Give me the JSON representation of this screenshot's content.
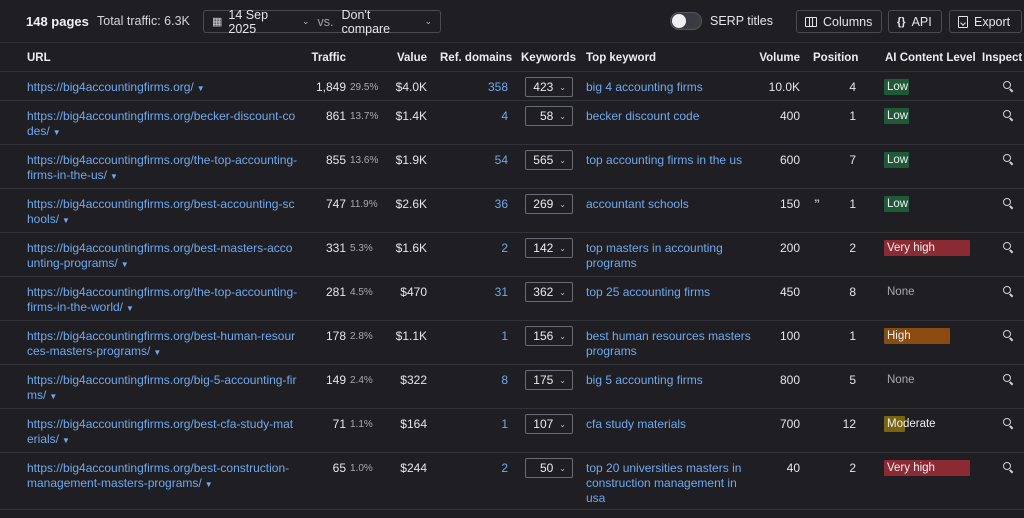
{
  "toolbar": {
    "pages_label": "148 pages",
    "total_traffic": "Total traffic: 6.3K",
    "date": "14 Sep 2025",
    "vs_label": "vs.",
    "compare": "Don't compare",
    "serp_titles": "SERP titles",
    "columns_label": "Columns",
    "api_label": "API",
    "export_label": "Export"
  },
  "headers": {
    "url": "URL",
    "traffic": "Traffic",
    "value": "Value",
    "ref_domains": "Ref. domains",
    "keywords": "Keywords",
    "top_keyword": "Top keyword",
    "volume": "Volume",
    "position": "Position",
    "ai_level": "AI Content Level",
    "inspect": "Inspect"
  },
  "rows": [
    {
      "url": "https://big4accountingfirms.org/",
      "traffic": "1,849",
      "pct": "29.5%",
      "value": "$4.0K",
      "ref": "358",
      "keywords": "423",
      "top_keyword": "big 4 accounting firms",
      "volume": "10.0K",
      "quote": "",
      "position": "4",
      "ai": "Low",
      "ai_class": "ai-low"
    },
    {
      "url": "https://big4accountingfirms.org/becker-discount-codes/",
      "traffic": "861",
      "pct": "13.7%",
      "value": "$1.4K",
      "ref": "4",
      "keywords": "58",
      "top_keyword": "becker discount code",
      "volume": "400",
      "quote": "",
      "position": "1",
      "ai": "Low",
      "ai_class": "ai-low"
    },
    {
      "url": "https://big4accountingfirms.org/the-top-accounting-firms-in-the-us/",
      "traffic": "855",
      "pct": "13.6%",
      "value": "$1.9K",
      "ref": "54",
      "keywords": "565",
      "top_keyword": "top accounting firms in the us",
      "volume": "600",
      "quote": "",
      "position": "7",
      "ai": "Low",
      "ai_class": "ai-low"
    },
    {
      "url": "https://big4accountingfirms.org/best-accounting-schools/",
      "traffic": "747",
      "pct": "11.9%",
      "value": "$2.6K",
      "ref": "36",
      "keywords": "269",
      "top_keyword": "accountant schools",
      "volume": "150",
      "quote": "”",
      "position": "1",
      "ai": "Low",
      "ai_class": "ai-low"
    },
    {
      "url": "https://big4accountingfirms.org/best-masters-accounting-programs/",
      "traffic": "331",
      "pct": "5.3%",
      "value": "$1.6K",
      "ref": "2",
      "keywords": "142",
      "top_keyword": "top masters in accounting programs",
      "volume": "200",
      "quote": "",
      "position": "2",
      "ai": "Very high",
      "ai_class": "ai-veryhigh"
    },
    {
      "url": "https://big4accountingfirms.org/the-top-accounting-firms-in-the-world/",
      "traffic": "281",
      "pct": "4.5%",
      "value": "$470",
      "ref": "31",
      "keywords": "362",
      "top_keyword": "top 25 accounting firms",
      "volume": "450",
      "quote": "",
      "position": "8",
      "ai": "None",
      "ai_class": "ai-none"
    },
    {
      "url": "https://big4accountingfirms.org/best-human-resources-masters-programs/",
      "traffic": "178",
      "pct": "2.8%",
      "value": "$1.1K",
      "ref": "1",
      "keywords": "156",
      "top_keyword": "best human resources masters programs",
      "volume": "100",
      "quote": "",
      "position": "1",
      "ai": "High",
      "ai_class": "ai-high"
    },
    {
      "url": "https://big4accountingfirms.org/big-5-accounting-firms/",
      "traffic": "149",
      "pct": "2.4%",
      "value": "$322",
      "ref": "8",
      "keywords": "175",
      "top_keyword": "big 5 accounting firms",
      "volume": "800",
      "quote": "",
      "position": "5",
      "ai": "None",
      "ai_class": "ai-none"
    },
    {
      "url": "https://big4accountingfirms.org/best-cfa-study-materials/",
      "traffic": "71",
      "pct": "1.1%",
      "value": "$164",
      "ref": "1",
      "keywords": "107",
      "top_keyword": "cfa study materials",
      "volume": "700",
      "quote": "",
      "position": "12",
      "ai": "Moderate",
      "ai_class": "ai-moderate"
    },
    {
      "url": "https://big4accountingfirms.org/best-construction-management-masters-programs/",
      "traffic": "65",
      "pct": "1.0%",
      "value": "$244",
      "ref": "2",
      "keywords": "50",
      "top_keyword": "top 20 universities masters in construction management in usa",
      "volume": "40",
      "quote": "",
      "position": "2",
      "ai": "Very high",
      "ai_class": "ai-veryhigh"
    }
  ]
}
